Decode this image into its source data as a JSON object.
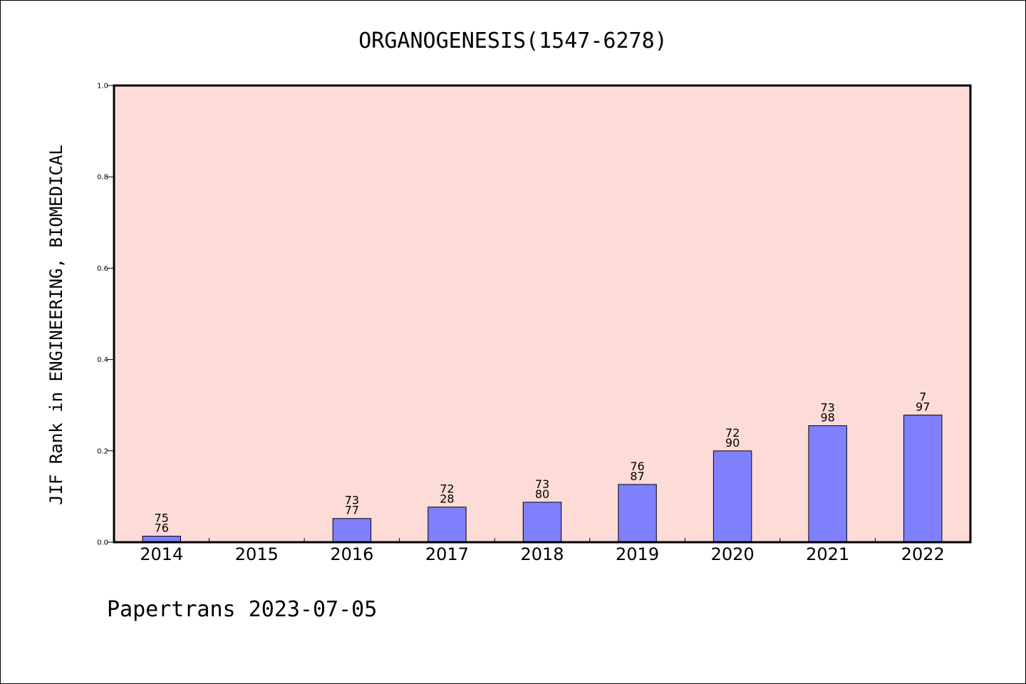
{
  "chart_data": {
    "type": "bar",
    "title": "ORGANOGENESIS(1547-6278)",
    "xlabel": "",
    "ylabel": "JIF Rank in ENGINEERING, BIOMEDICAL",
    "ylim": [
      0,
      1.0
    ],
    "yticks": [
      "0.0",
      "0.2",
      "0.4",
      "0.6",
      "0.8",
      "1.0"
    ],
    "categories": [
      "2014",
      "2015",
      "2016",
      "2017",
      "2018",
      "2019",
      "2020",
      "2021",
      "2022"
    ],
    "values": [
      0.0132,
      null,
      0.0519,
      0.0769,
      0.0875,
      0.1264,
      0.2,
      0.2551,
      0.2784
    ],
    "bar_labels": [
      [
        "75",
        "76"
      ],
      null,
      [
        "73",
        "77"
      ],
      [
        "72",
        "28"
      ],
      [
        "73",
        "80"
      ],
      [
        "76",
        "87"
      ],
      [
        "72",
        "90"
      ],
      [
        "73",
        "98"
      ],
      [
        "7",
        "97"
      ]
    ],
    "grid": false,
    "plot_background": "#fddbd7",
    "bar_color": "#8080ff"
  },
  "footer": "Papertrans 2023-07-05"
}
